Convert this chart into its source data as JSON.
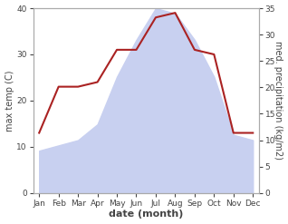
{
  "months": [
    "Jan",
    "Feb",
    "Mar",
    "Apr",
    "May",
    "Jun",
    "Jul",
    "Aug",
    "Sep",
    "Oct",
    "Nov",
    "Dec"
  ],
  "temperature": [
    13,
    23,
    23,
    24,
    31,
    31,
    38,
    39,
    31,
    30,
    13,
    13
  ],
  "precipitation_kg": [
    8,
    9,
    10,
    13,
    22,
    29,
    35,
    34,
    29,
    22,
    11,
    10
  ],
  "temp_color": "#aa2222",
  "precip_color_fill": "#c8d0f0",
  "left_ylim": [
    0,
    40
  ],
  "right_ylim": [
    0,
    35
  ],
  "left_yticks": [
    0,
    10,
    20,
    30,
    40
  ],
  "right_yticks": [
    0,
    5,
    10,
    15,
    20,
    25,
    30,
    35
  ],
  "xlabel": "date (month)",
  "ylabel_left": "max temp (C)",
  "ylabel_right": "med. precipitation (kg/m2)",
  "temp_linewidth": 1.5,
  "background_color": "#ffffff",
  "spine_color": "#aaaaaa",
  "tick_color": "#444444",
  "label_fontsize": 7,
  "xlabel_fontsize": 8,
  "ylabel_fontsize": 7,
  "tick_fontsize": 6.5
}
